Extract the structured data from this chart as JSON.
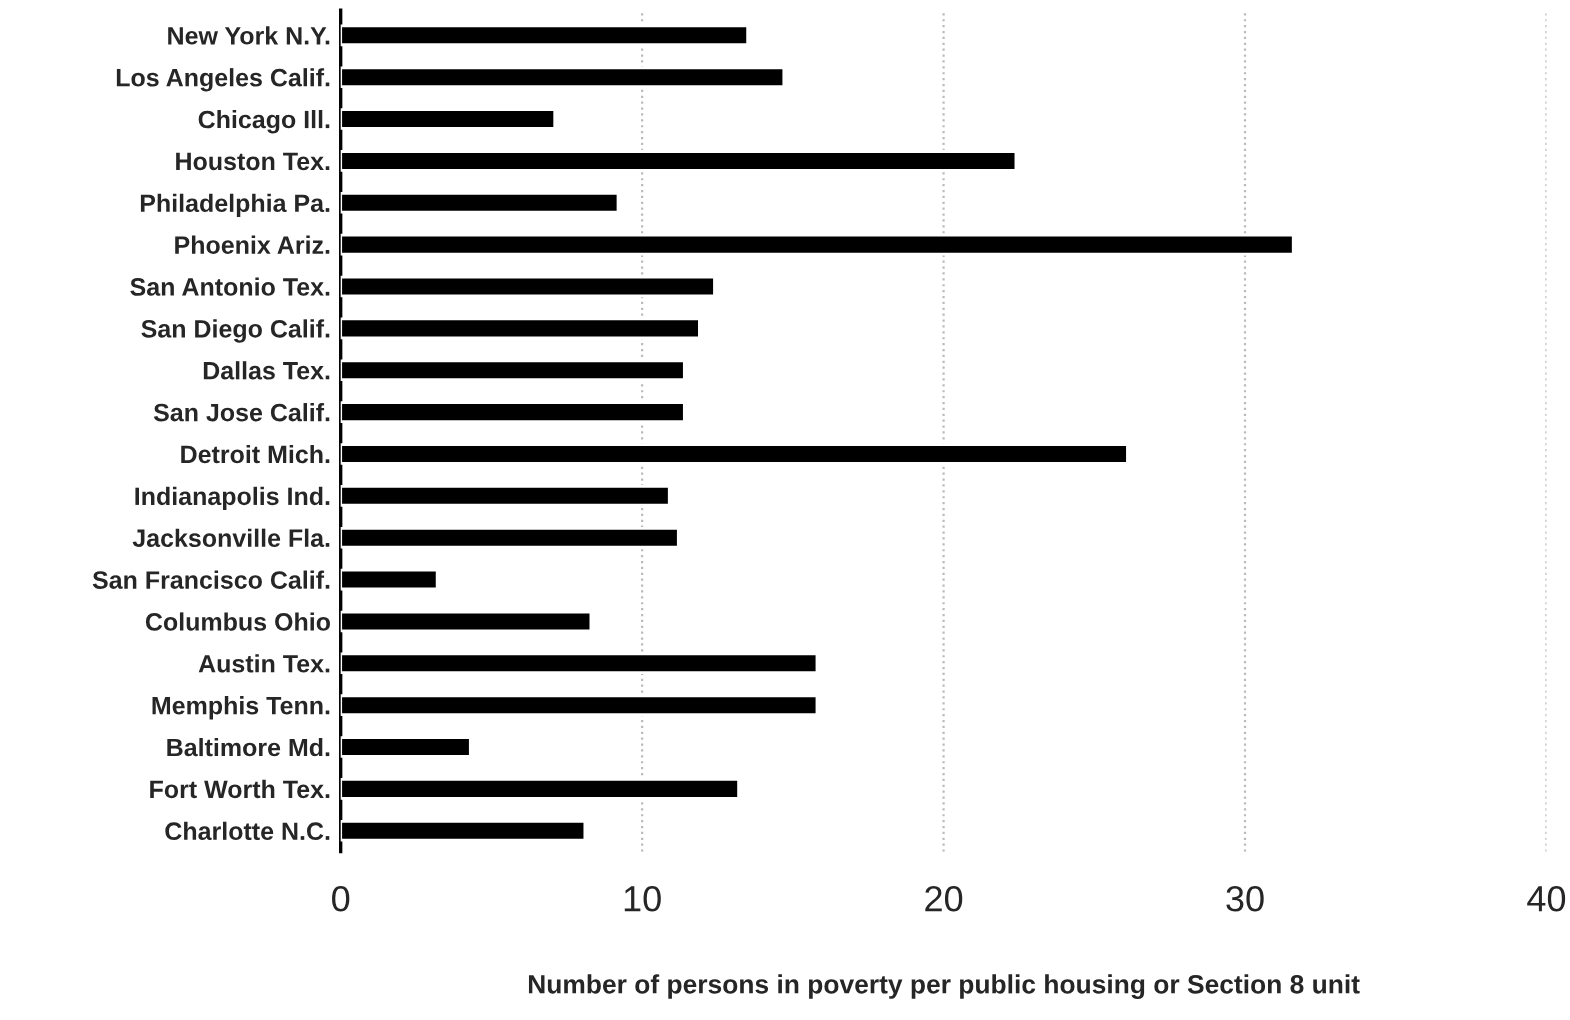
{
  "chart_data": {
    "type": "bar",
    "orientation": "horizontal",
    "xlabel": "Number of persons in poverty per public housing or Section 8 unit",
    "categories": [
      "New York N.Y.",
      "Los Angeles Calif.",
      "Chicago Ill.",
      "Houston Tex.",
      "Philadelphia Pa.",
      "Phoenix Ariz.",
      "San Antonio Tex.",
      "San Diego Calif.",
      "Dallas Tex.",
      "San Jose Calif.",
      "Detroit Mich.",
      "Indianapolis Ind.",
      "Jacksonville Fla.",
      "San Francisco Calif.",
      "Columbus Ohio",
      "Austin Tex.",
      "Memphis Tenn.",
      "Baltimore Md.",
      "Fort Worth Tex.",
      "Charlotte N.C."
    ],
    "values": [
      13.5,
      14.7,
      7.1,
      22.4,
      9.2,
      31.6,
      12.4,
      11.9,
      11.4,
      11.4,
      26.1,
      10.9,
      11.2,
      3.2,
      8.3,
      15.8,
      15.8,
      4.3,
      13.2,
      8.1
    ],
    "color": "#000000",
    "xlim": [
      0,
      40
    ],
    "xticks": [
      0,
      10,
      20,
      30,
      40
    ],
    "grid": "x"
  }
}
